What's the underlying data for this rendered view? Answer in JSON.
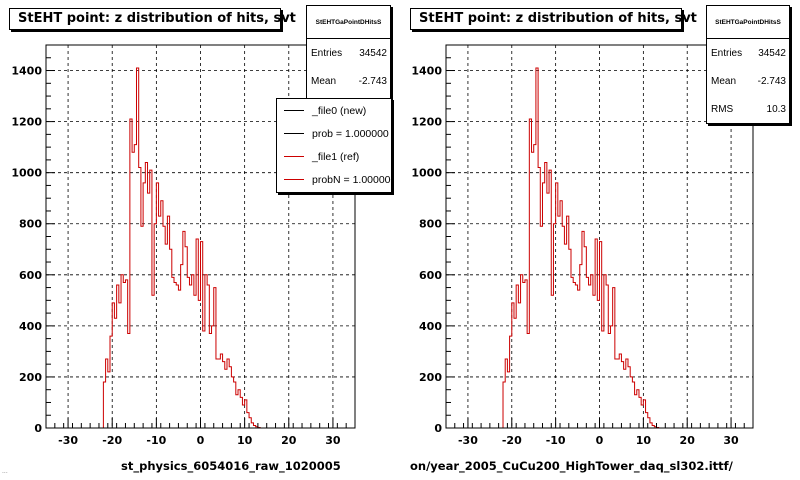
{
  "accent": "#cc0000",
  "footer": "...",
  "panels": [
    {
      "title": "StEHT point: z distribution of hits, svt",
      "stats": {
        "name": "StEHTGaPointDHitsS",
        "rows": [
          {
            "label": "Entries",
            "value": "34542"
          },
          {
            "label": "Mean",
            "value": "-2.743"
          }
        ]
      },
      "legend": [
        {
          "label": "_file0 (new)",
          "color": "#000000"
        },
        {
          "label": "prob = 1.000000",
          "color": "#000000"
        },
        {
          "label": "_file1 (ref)",
          "color": "#cc0000"
        },
        {
          "label": "probN = 1.000000",
          "color": "#cc0000"
        }
      ],
      "xtitle": "st_physics_6054016_raw_1020005"
    },
    {
      "title": "StEHT point: z distribution of hits, svt",
      "stats": {
        "name": "StEHTGaPointDHitsS",
        "rows": [
          {
            "label": "Entries",
            "value": "34542"
          },
          {
            "label": "Mean",
            "value": "-2.743"
          },
          {
            "label": "RMS",
            "value": "10.3"
          }
        ]
      },
      "xtitle": "on/year_2005_CuCu200_HighTower_daq_sl302.ittf/"
    }
  ],
  "chart_data": [
    {
      "type": "area",
      "title": "StEHT point: z distribution of hits, svt",
      "xlabel": "st_physics_6054016_raw_1020005",
      "xlim": [
        -35,
        35
      ],
      "ylim": [
        0,
        1500
      ],
      "xticks": [
        -30,
        -20,
        -10,
        0,
        10,
        20,
        30
      ],
      "yticks": [
        0,
        200,
        400,
        600,
        800,
        1000,
        1200,
        1400
      ],
      "grid": true,
      "legend_position": "top-right",
      "series": [
        {
          "name": "_file1 (ref)",
          "color": "#cc0000",
          "x": [
            -22,
            -21.5,
            -21,
            -20.5,
            -20,
            -19.5,
            -19,
            -18.5,
            -18,
            -17.5,
            -17,
            -16.5,
            -16,
            -15.5,
            -15,
            -14.5,
            -14,
            -13.5,
            -13,
            -12.5,
            -12,
            -11.5,
            -11,
            -10.5,
            -10,
            -9.5,
            -9,
            -8.5,
            -8,
            -7.5,
            -7,
            -6.5,
            -6,
            -5.5,
            -5,
            -4.5,
            -4,
            -3.5,
            -3,
            -2.5,
            -2,
            -1.5,
            -1,
            -0.5,
            0,
            0.5,
            1,
            1.5,
            2,
            2.5,
            3,
            3.5,
            4,
            4.5,
            5,
            5.5,
            6,
            6.5,
            7,
            7.5,
            8,
            8.5,
            9,
            9.5,
            10,
            10.5,
            11,
            11.5,
            12,
            12.5,
            13,
            13.5,
            14,
            14.5,
            15,
            15.5,
            16,
            16.5,
            17,
            17.5,
            18,
            18.5,
            19,
            19.5,
            20,
            20.5,
            21,
            21.5
          ],
          "values": [
            180,
            270,
            220,
            360,
            490,
            430,
            560,
            490,
            600,
            570,
            580,
            370,
            1210,
            1080,
            1110,
            1410,
            1020,
            790,
            960,
            1040,
            920,
            1010,
            520,
            800,
            960,
            830,
            890,
            790,
            720,
            830,
            700,
            590,
            570,
            560,
            540,
            640,
            770,
            710,
            590,
            560,
            600,
            520,
            740,
            500,
            730,
            380,
            600,
            560,
            370,
            400,
            550,
            270,
            270,
            290,
            260,
            230,
            270,
            240,
            200,
            180,
            130,
            150,
            120,
            90,
            110,
            60,
            40,
            20,
            10,
            5,
            2,
            0,
            0,
            0,
            0,
            0,
            0,
            0,
            0,
            0,
            0,
            0,
            0,
            0,
            0,
            0,
            0,
            0
          ]
        }
      ]
    },
    {
      "type": "area",
      "title": "StEHT point: z distribution of hits, svt",
      "xlabel": "on/year_2005_CuCu200_HighTower_daq_sl302.ittf/",
      "xlim": [
        -35,
        35
      ],
      "ylim": [
        0,
        1500
      ],
      "xticks": [
        -30,
        -20,
        -10,
        0,
        10,
        20,
        30
      ],
      "yticks": [
        0,
        200,
        400,
        600,
        800,
        1000,
        1200,
        1400
      ],
      "grid": true,
      "series": [
        {
          "color": "#cc0000",
          "x": [
            -22,
            -21.5,
            -21,
            -20.5,
            -20,
            -19.5,
            -19,
            -18.5,
            -18,
            -17.5,
            -17,
            -16.5,
            -16,
            -15.5,
            -15,
            -14.5,
            -14,
            -13.5,
            -13,
            -12.5,
            -12,
            -11.5,
            -11,
            -10.5,
            -10,
            -9.5,
            -9,
            -8.5,
            -8,
            -7.5,
            -7,
            -6.5,
            -6,
            -5.5,
            -5,
            -4.5,
            -4,
            -3.5,
            -3,
            -2.5,
            -2,
            -1.5,
            -1,
            -0.5,
            0,
            0.5,
            1,
            1.5,
            2,
            2.5,
            3,
            3.5,
            4,
            4.5,
            5,
            5.5,
            6,
            6.5,
            7,
            7.5,
            8,
            8.5,
            9,
            9.5,
            10,
            10.5,
            11,
            11.5,
            12,
            12.5,
            13,
            13.5,
            14,
            14.5,
            15,
            15.5,
            16,
            16.5,
            17,
            17.5,
            18,
            18.5,
            19,
            19.5,
            20,
            20.5,
            21,
            21.5
          ],
          "values": [
            180,
            270,
            220,
            360,
            490,
            430,
            560,
            490,
            600,
            570,
            580,
            370,
            1210,
            1080,
            1110,
            1410,
            1020,
            790,
            960,
            1040,
            920,
            1010,
            520,
            800,
            960,
            830,
            890,
            790,
            720,
            830,
            700,
            590,
            570,
            560,
            540,
            640,
            770,
            710,
            590,
            560,
            600,
            520,
            740,
            500,
            730,
            380,
            600,
            560,
            370,
            400,
            550,
            270,
            270,
            290,
            260,
            230,
            270,
            240,
            200,
            180,
            130,
            150,
            120,
            90,
            110,
            60,
            40,
            20,
            10,
            5,
            2,
            0,
            0,
            0,
            0,
            0,
            0,
            0,
            0,
            0,
            0,
            0,
            0,
            0,
            0,
            0,
            0,
            0
          ]
        }
      ]
    }
  ]
}
